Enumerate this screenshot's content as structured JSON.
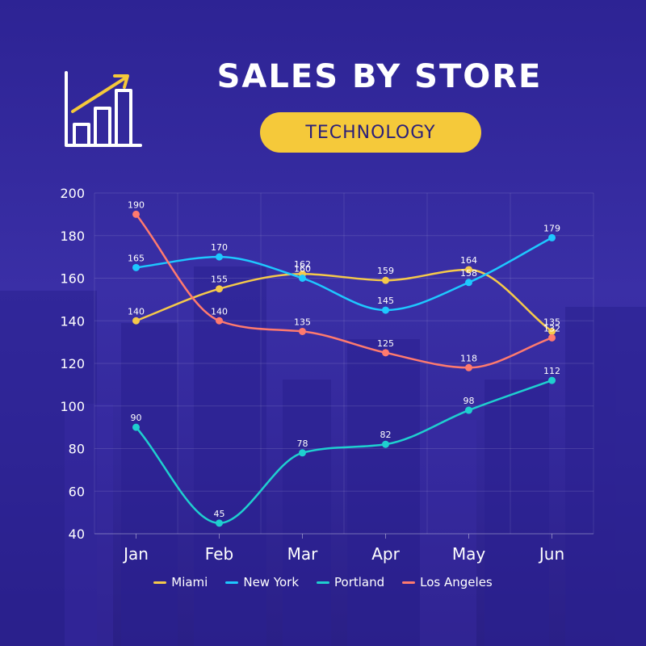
{
  "header": {
    "title": "SALES BY STORE",
    "subtitle": "TECHNOLOGY",
    "logo_icon": "bar-chart-growth-icon"
  },
  "colors": {
    "accent": "#f5c93a",
    "Miami": "#f5c94a",
    "New York": "#1ec8ff",
    "Portland": "#1fcfcf",
    "Los Angeles": "#ff7a6e"
  },
  "chart_data": {
    "type": "line",
    "categories": [
      "Jan",
      "Feb",
      "Mar",
      "Apr",
      "May",
      "Jun"
    ],
    "series": [
      {
        "name": "Miami",
        "values": [
          140,
          155,
          162,
          159,
          164,
          135
        ]
      },
      {
        "name": "New York",
        "values": [
          165,
          170,
          160,
          145,
          158,
          179
        ]
      },
      {
        "name": "Portland",
        "values": [
          90,
          45,
          78,
          82,
          98,
          112
        ]
      },
      {
        "name": "Los Angeles",
        "values": [
          190,
          140,
          135,
          125,
          118,
          132
        ]
      }
    ],
    "ylim": [
      40,
      200
    ],
    "yticks": [
      40,
      60,
      80,
      100,
      120,
      140,
      160,
      180,
      200
    ],
    "grid": true,
    "legend_position": "bottom",
    "smooth": true
  }
}
